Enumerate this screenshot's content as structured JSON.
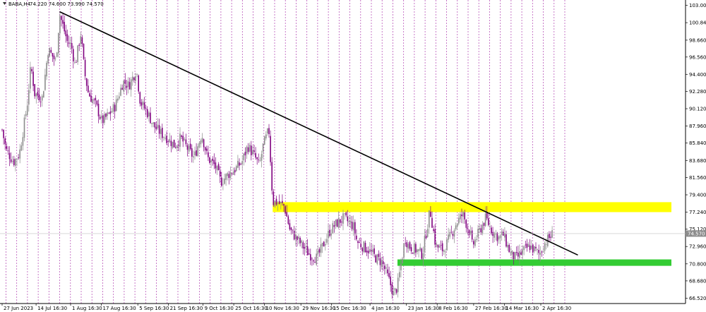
{
  "header": {
    "symbol": "BABA,H4",
    "ohlc": "74.220 74.600 73.990 74.570"
  },
  "chart_data": {
    "type": "candlestick",
    "title": "BABA,H4 74.220 74.600 73.990 74.570",
    "ylim": [
      65.86,
      103.66
    ],
    "y_ticks": [
      103.0,
      100.84,
      98.66,
      96.56,
      94.4,
      92.28,
      90.12,
      87.96,
      85.84,
      83.68,
      81.56,
      79.4,
      77.24,
      75.12,
      72.96,
      70.8,
      68.68,
      66.52
    ],
    "y_tick_labels": [
      "103.000",
      "100.840",
      "98.660",
      "96.560",
      "94.400",
      "92.280",
      "90.120",
      "87.960",
      "85.840",
      "83.680",
      "81.560",
      "79.400",
      "77.240",
      "75.120",
      "72.960",
      "70.800",
      "68.680",
      "66.520"
    ],
    "x_tick_labels": [
      "27 Jun 2023",
      "14 Jul 16:30",
      "1 Aug 16:30",
      "17 Aug 16:30",
      "5 Sep 16:30",
      "21 Sep 16:30",
      "9 Oct 16:30",
      "25 Oct 16:30",
      "10 Nov 16:30",
      "29 Nov 16:30",
      "15 Dec 16:30",
      "4 Jan 16:30",
      "23 Jan 16:30",
      "8 Feb 16:30",
      "27 Feb 16:30",
      "14 Mar 16:30",
      "2 Apr 16:30"
    ],
    "current_price": 74.57,
    "current_price_label": "74.570",
    "grid": "vertical-dotted",
    "price_path": [
      {
        "x": "27 Jun 2023",
        "y": 87.5
      },
      {
        "x": "29 Jun 2023",
        "y": 85.0
      },
      {
        "x": "3 Jul 2023",
        "y": 83.5
      },
      {
        "x": "6 Jul 2023",
        "y": 84.5
      },
      {
        "x": "10 Jul 2023",
        "y": 90.5
      },
      {
        "x": "12 Jul 2023",
        "y": 95.5
      },
      {
        "x": "14 Jul 2023",
        "y": 92.0
      },
      {
        "x": "18 Jul 2023",
        "y": 91.5
      },
      {
        "x": "21 Jul 2023",
        "y": 97.5
      },
      {
        "x": "25 Jul 2023",
        "y": 96.0
      },
      {
        "x": "27 Jul 2023",
        "y": 101.9
      },
      {
        "x": "31 Jul 2023",
        "y": 98.5
      },
      {
        "x": "2 Aug 2023",
        "y": 98.0
      },
      {
        "x": "4 Aug 2023",
        "y": 95.5
      },
      {
        "x": "7 Aug 2023",
        "y": 99.5
      },
      {
        "x": "9 Aug 2023",
        "y": 94.5
      },
      {
        "x": "11 Aug 2023",
        "y": 92.0
      },
      {
        "x": "15 Aug 2023",
        "y": 90.5
      },
      {
        "x": "18 Aug 2023",
        "y": 88.5
      },
      {
        "x": "22 Aug 2023",
        "y": 89.5
      },
      {
        "x": "25 Aug 2023",
        "y": 90.5
      },
      {
        "x": "29 Aug 2023",
        "y": 93.5
      },
      {
        "x": "1 Sep 2023",
        "y": 93.0
      },
      {
        "x": "5 Sep 2023",
        "y": 95.0
      },
      {
        "x": "7 Sep 2023",
        "y": 91.0
      },
      {
        "x": "11 Sep 2023",
        "y": 89.5
      },
      {
        "x": "14 Sep 2023",
        "y": 88.0
      },
      {
        "x": "18 Sep 2023",
        "y": 87.0
      },
      {
        "x": "21 Sep 2023",
        "y": 86.5
      },
      {
        "x": "25 Sep 2023",
        "y": 85.5
      },
      {
        "x": "28 Sep 2023",
        "y": 86.5
      },
      {
        "x": "2 Oct 2023",
        "y": 85.0
      },
      {
        "x": "5 Oct 2023",
        "y": 84.0
      },
      {
        "x": "9 Oct 2023",
        "y": 87.0
      },
      {
        "x": "12 Oct 2023",
        "y": 84.0
      },
      {
        "x": "16 Oct 2023",
        "y": 83.0
      },
      {
        "x": "19 Oct 2023",
        "y": 81.0
      },
      {
        "x": "23 Oct 2023",
        "y": 82.0
      },
      {
        "x": "26 Oct 2023",
        "y": 82.5
      },
      {
        "x": "30 Oct 2023",
        "y": 83.5
      },
      {
        "x": "2 Nov 2023",
        "y": 85.5
      },
      {
        "x": "6 Nov 2023",
        "y": 84.0
      },
      {
        "x": "8 Nov 2023",
        "y": 83.0
      },
      {
        "x": "10 Nov 2023",
        "y": 85.5
      },
      {
        "x": "13 Nov 2023",
        "y": 87.5
      },
      {
        "x": "15 Nov 2023",
        "y": 78.5
      },
      {
        "x": "17 Nov 2023",
        "y": 78.5
      },
      {
        "x": "21 Nov 2023",
        "y": 78.0
      },
      {
        "x": "24 Nov 2023",
        "y": 75.0
      },
      {
        "x": "29 Nov 2023",
        "y": 73.5
      },
      {
        "x": "4 Dec 2023",
        "y": 72.0
      },
      {
        "x": "8 Dec 2023",
        "y": 71.5
      },
      {
        "x": "12 Dec 2023",
        "y": 73.5
      },
      {
        "x": "15 Dec 2023",
        "y": 75.0
      },
      {
        "x": "19 Dec 2023",
        "y": 76.0
      },
      {
        "x": "22 Dec 2023",
        "y": 76.5
      },
      {
        "x": "27 Dec 2023",
        "y": 75.5
      },
      {
        "x": "29 Dec 2023",
        "y": 73.5
      },
      {
        "x": "4 Jan 2024",
        "y": 72.5
      },
      {
        "x": "8 Jan 2024",
        "y": 71.5
      },
      {
        "x": "11 Jan 2024",
        "y": 71.0
      },
      {
        "x": "15 Jan 2024",
        "y": 68.5
      },
      {
        "x": "17 Jan 2024",
        "y": 67.0
      },
      {
        "x": "19 Jan 2024",
        "y": 68.0
      },
      {
        "x": "23 Jan 2024",
        "y": 74.0
      },
      {
        "x": "25 Jan 2024",
        "y": 73.0
      },
      {
        "x": "29 Jan 2024",
        "y": 72.5
      },
      {
        "x": "1 Feb 2024",
        "y": 72.0
      },
      {
        "x": "5 Feb 2024",
        "y": 77.5
      },
      {
        "x": "8 Feb 2024",
        "y": 73.0
      },
      {
        "x": "12 Feb 2024",
        "y": 72.5
      },
      {
        "x": "15 Feb 2024",
        "y": 74.0
      },
      {
        "x": "19 Feb 2024",
        "y": 76.0
      },
      {
        "x": "22 Feb 2024",
        "y": 77.0
      },
      {
        "x": "26 Feb 2024",
        "y": 74.5
      },
      {
        "x": "27 Feb 2024",
        "y": 73.0
      },
      {
        "x": "1 Mar 2024",
        "y": 74.5
      },
      {
        "x": "5 Mar 2024",
        "y": 76.5
      },
      {
        "x": "8 Mar 2024",
        "y": 75.0
      },
      {
        "x": "12 Mar 2024",
        "y": 74.0
      },
      {
        "x": "14 Mar 2024",
        "y": 74.5
      },
      {
        "x": "18 Mar 2024",
        "y": 72.0
      },
      {
        "x": "21 Mar 2024",
        "y": 71.5
      },
      {
        "x": "25 Mar 2024",
        "y": 72.5
      },
      {
        "x": "28 Mar 2024",
        "y": 73.0
      },
      {
        "x": "2 Apr 2024",
        "y": 72.0
      },
      {
        "x": "5 Apr 2024",
        "y": 73.5
      },
      {
        "x": "9 Apr 2024",
        "y": 74.57
      }
    ],
    "trendline": {
      "from": {
        "x": "27 Jul 2023",
        "y": 102.2
      },
      "to": {
        "x": "22 Apr 2024",
        "y": 71.9
      },
      "color": "#000000"
    },
    "zones": [
      {
        "name": "",
        "color": "#ffff00",
        "y_low": 77.24,
        "y_high": 78.48,
        "x_start": "15 Nov 2023"
      },
      {
        "name": "",
        "color": "#33cc33",
        "y_low": 70.55,
        "y_high": 71.35,
        "x_start": "19 Jan 2024"
      }
    ],
    "colors": {
      "bull_candle": "#8c8c8c",
      "bear_candle": "#800080",
      "grid": "#b040b0",
      "current_price_badge": "#8c8c8c"
    }
  }
}
